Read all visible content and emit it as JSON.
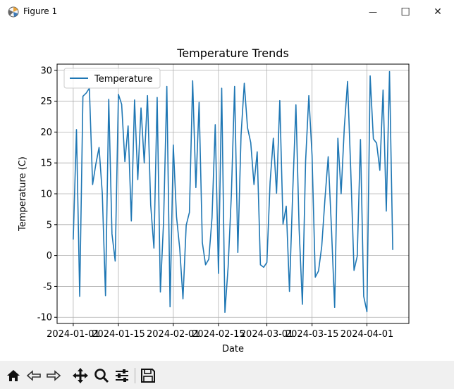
{
  "window": {
    "title": "Figure 1",
    "minimize_label": "—",
    "maximize_label": "☐",
    "close_label": "✕"
  },
  "toolbar": {
    "buttons": [
      {
        "name": "home-button",
        "icon": "home-icon"
      },
      {
        "name": "back-button",
        "icon": "back-arrow-icon"
      },
      {
        "name": "forward-button",
        "icon": "forward-arrow-icon"
      },
      {
        "name": "pan-button",
        "icon": "move-icon"
      },
      {
        "name": "zoom-button",
        "icon": "magnifier-icon"
      },
      {
        "name": "configure-subplots-button",
        "icon": "sliders-icon"
      },
      {
        "name": "save-button",
        "icon": "floppy-disk-icon"
      }
    ]
  },
  "chart_data": {
    "type": "line",
    "title": "Temperature Trends",
    "xlabel": "Date",
    "ylabel": "Temperature (C)",
    "x_tick_labels": [
      "2024-01-01",
      "2024-01-15",
      "2024-02-01",
      "2024-02-15",
      "2024-03-01",
      "2024-03-15",
      "2024-04-01"
    ],
    "y_ticks": [
      -10,
      -5,
      0,
      5,
      10,
      15,
      20,
      25,
      30
    ],
    "ylim": [
      -11.0,
      31.0
    ],
    "xlim": [
      "2023-12-27",
      "2024-04-14"
    ],
    "grid": true,
    "legend": "upper-left",
    "line_color": "#1f77b4",
    "series": [
      {
        "name": "Temperature",
        "x_start": "2024-01-01",
        "x_step": "1 day",
        "values": [
          2.6,
          20.4,
          -6.6,
          25.8,
          26.3,
          27.1,
          11.5,
          14.8,
          17.5,
          10.1,
          -6.5,
          25.3,
          3.5,
          -0.9,
          26.1,
          24.5,
          15.2,
          21.0,
          5.6,
          25.2,
          12.3,
          23.9,
          15.0,
          25.9,
          8.2,
          1.2,
          25.6,
          -5.9,
          5.6,
          27.4,
          -8.3,
          17.9,
          6.3,
          1.1,
          -7.0,
          4.9,
          7.0,
          28.3,
          11.0,
          24.8,
          2.1,
          -1.5,
          -0.6,
          6.1,
          21.2,
          -2.9,
          27.1,
          -9.2,
          -1.8,
          9.9,
          27.4,
          0.5,
          19.5,
          27.9,
          20.7,
          18.3,
          11.5,
          16.8,
          -1.5,
          -1.9,
          -1.1,
          11.9,
          19.0,
          10.1,
          25.1,
          5.1,
          8.0,
          -5.8,
          10.2,
          24.4,
          4.2,
          -7.9,
          15.3,
          25.9,
          16.2,
          -3.5,
          -2.5,
          1.5,
          9.2,
          16.0,
          4.5,
          -8.4,
          19.0,
          10.0,
          20.8,
          28.2,
          13.6,
          -2.4,
          -0.1,
          18.8,
          -6.6,
          -9.1,
          29.1,
          18.9,
          18.2,
          13.8,
          26.8,
          7.2,
          29.8,
          0.9
        ]
      }
    ]
  }
}
